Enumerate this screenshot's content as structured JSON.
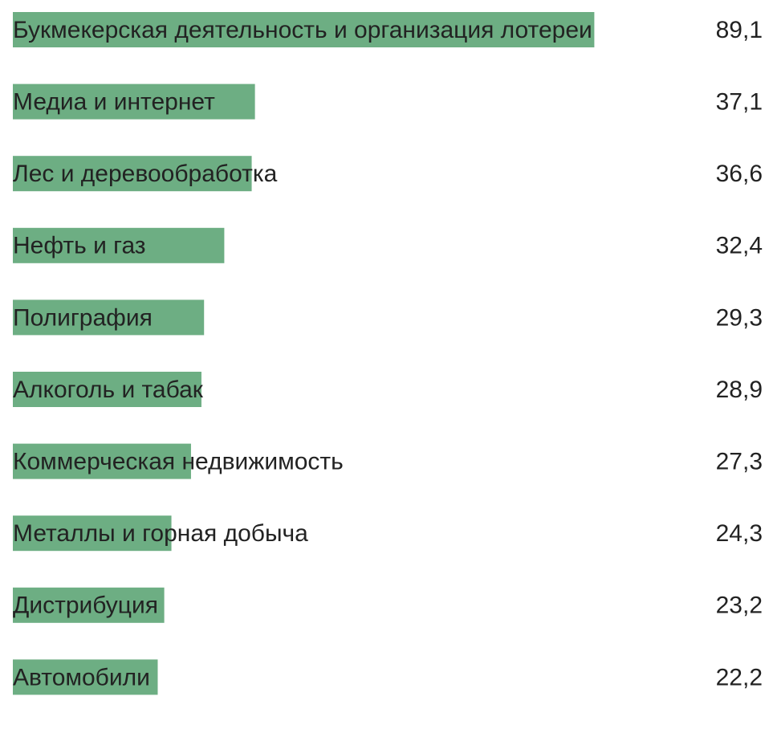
{
  "chart_data": {
    "type": "bar",
    "orientation": "horizontal",
    "color": "#6dae83",
    "categories": [
      "Букмекерская деятельность и организация лотереи",
      "Медиа и интернет",
      "Лес и деревообработка",
      "Нефть и газ",
      "Полиграфия",
      "Алкоголь и табак",
      "Коммерческая недвижимость",
      "Металлы и горная добыча",
      "Дистрибуция",
      "Автомобили"
    ],
    "values": [
      89.1,
      37.1,
      36.6,
      32.4,
      29.3,
      28.9,
      27.3,
      24.3,
      23.2,
      22.2
    ],
    "value_labels": [
      "89,1",
      "37,1",
      "36,6",
      "32,4",
      "29,3",
      "28,9",
      "27,3",
      "24,3",
      "23,2",
      "22,2"
    ]
  }
}
